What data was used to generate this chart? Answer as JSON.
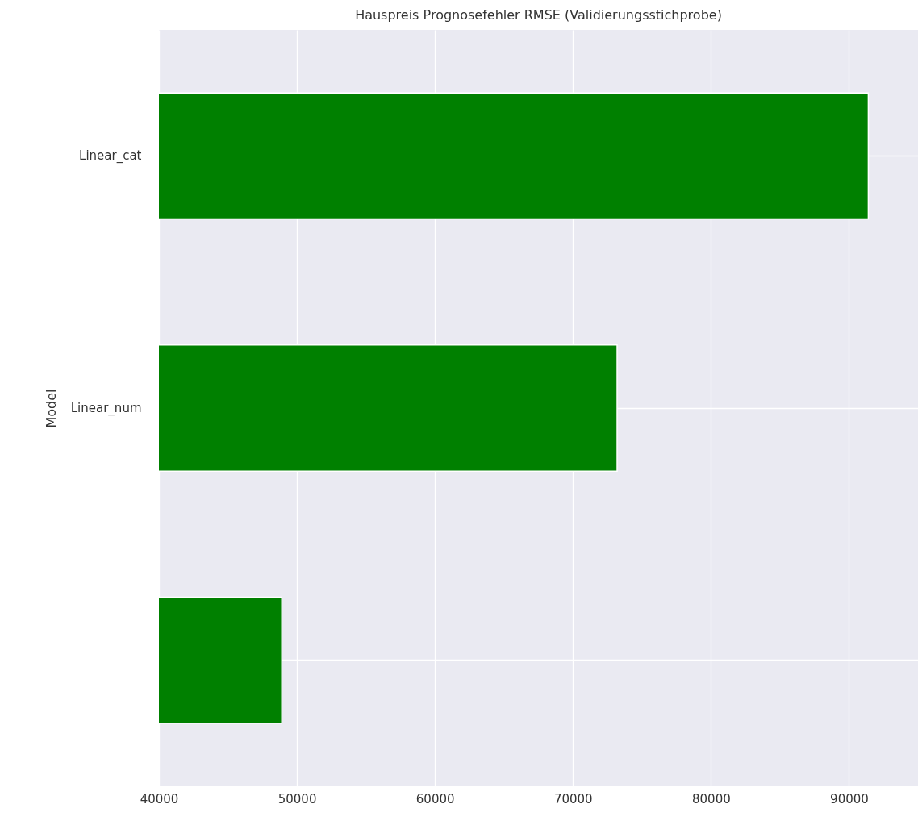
{
  "chart_data": {
    "type": "bar",
    "orientation": "horizontal",
    "title": "Hauspreis Prognosefehler RMSE (Validierungsstichprobe)",
    "ylabel": "Model",
    "categories": [
      "Linear_cat",
      "Linear_num",
      null
    ],
    "values": [
      91400,
      73200,
      48900
    ],
    "color": "#008000",
    "xlim": [
      40000,
      95000
    ],
    "xticks": [
      40000,
      50000,
      60000,
      70000,
      80000,
      90000
    ],
    "grid": true
  }
}
